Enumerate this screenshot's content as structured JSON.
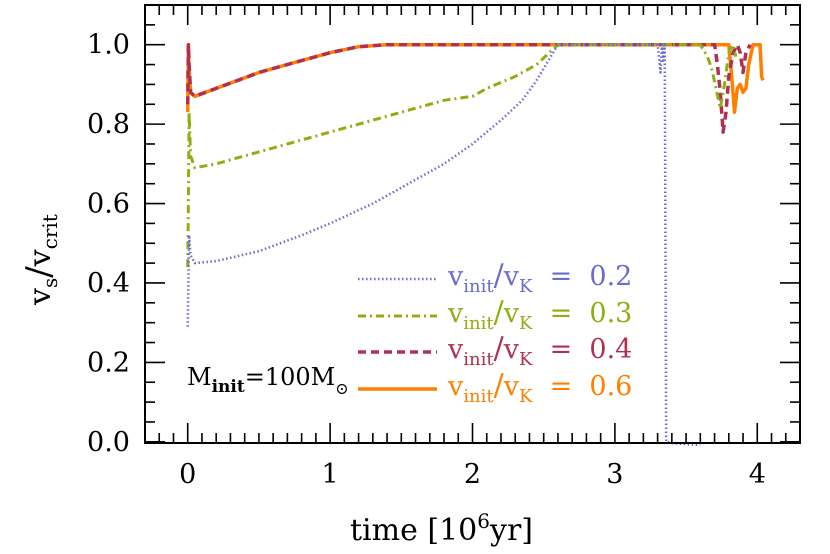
{
  "chart_data": {
    "type": "line",
    "title": "",
    "xlabel": "time [10^6 yr]",
    "xlabel_parts": {
      "main": "time [10",
      "sup": "6",
      "tail": "yr]"
    },
    "ylabel": "v_s/v_crit",
    "ylabel_parts": {
      "v1": "v",
      "sub1": "s",
      "slash": "/",
      "v2": "v",
      "sub2": "crit"
    },
    "xlim": [
      -0.3,
      4.3
    ],
    "ylim": [
      -0.003,
      1.1
    ],
    "xticks": [
      0,
      1,
      2,
      3,
      4
    ],
    "xtick_labels": [
      "0",
      "1",
      "2",
      "3",
      "4"
    ],
    "x_minor_step": 0.1,
    "yticks": [
      0.0,
      0.2,
      0.4,
      0.6,
      0.8,
      1.0
    ],
    "ytick_labels": [
      "0.0",
      "0.2",
      "0.4",
      "0.6",
      "0.8",
      "1.0"
    ],
    "y_minor_step": 0.05,
    "grid": false,
    "legend_position": "lower center-right, inside axes",
    "annotation": {
      "text_main": "M",
      "text_sub": "init",
      "text_eq": "=100M",
      "text_sun": "⊙",
      "full": "M_init=100M_sun"
    },
    "series": [
      {
        "name": "v_init/v_K = 0.2",
        "label_ratio": "0.2",
        "color": "#6b6bd0",
        "style": "dotted",
        "x": [
          0.0,
          0.005,
          0.01,
          0.02,
          0.05,
          0.2,
          0.5,
          0.8,
          1.0,
          1.3,
          1.5,
          1.8,
          2.0,
          2.2,
          2.35,
          2.45,
          2.55,
          2.6,
          2.8,
          3.0,
          3.2,
          3.3,
          3.32,
          3.33,
          3.34,
          3.35,
          3.36,
          3.4,
          3.5,
          3.6
        ],
        "y": [
          0.29,
          0.4,
          0.52,
          0.47,
          0.45,
          0.455,
          0.48,
          0.52,
          0.55,
          0.6,
          0.64,
          0.7,
          0.75,
          0.81,
          0.86,
          0.91,
          0.97,
          1.0,
          1.0,
          1.0,
          1.0,
          1.0,
          0.93,
          1.0,
          0.96,
          1.0,
          0.0,
          -0.003,
          -0.006,
          -0.008
        ]
      },
      {
        "name": "v_init/v_K = 0.3",
        "label_ratio": "0.3",
        "color": "#8fae14",
        "style": "dashdot",
        "x": [
          0.0,
          0.005,
          0.01,
          0.02,
          0.05,
          0.2,
          0.5,
          0.8,
          1.0,
          1.3,
          1.5,
          1.8,
          2.0,
          2.1,
          2.3,
          2.45,
          2.6,
          2.8,
          3.0,
          3.3,
          3.6,
          3.65,
          3.68,
          3.71,
          3.74,
          3.77,
          3.8,
          3.83,
          3.85
        ],
        "y": [
          0.44,
          0.6,
          0.83,
          0.72,
          0.69,
          0.7,
          0.73,
          0.76,
          0.78,
          0.81,
          0.83,
          0.86,
          0.87,
          0.89,
          0.92,
          0.95,
          1.0,
          1.0,
          1.0,
          1.0,
          1.0,
          0.97,
          0.94,
          0.89,
          0.84,
          0.9,
          0.98,
          1.0,
          0.97
        ]
      },
      {
        "name": "v_init/v_K = 0.4",
        "label_ratio": "0.4",
        "color": "#b03050",
        "style": "dashed",
        "x": [
          0.0,
          0.005,
          0.01,
          0.02,
          0.05,
          0.2,
          0.5,
          0.8,
          1.0,
          1.2,
          1.4,
          1.6,
          2.0,
          2.5,
          3.0,
          3.5,
          3.7,
          3.72,
          3.74,
          3.76,
          3.78,
          3.8,
          3.83,
          3.86,
          3.88,
          3.9,
          3.92,
          3.95
        ],
        "y": [
          0.85,
          1.0,
          0.95,
          0.88,
          0.87,
          0.89,
          0.93,
          0.96,
          0.98,
          0.995,
          1.0,
          1.0,
          1.0,
          1.0,
          1.0,
          1.0,
          1.0,
          0.95,
          0.88,
          0.78,
          0.83,
          0.92,
          0.98,
          1.0,
          0.98,
          0.93,
          0.98,
          1.0
        ]
      },
      {
        "name": "v_init/v_K = 0.6",
        "label_ratio": "0.6",
        "color": "#ff8000",
        "style": "solid",
        "x": [
          0.0,
          0.005,
          0.01,
          0.02,
          0.05,
          0.2,
          0.5,
          0.8,
          1.0,
          1.2,
          1.4,
          1.6,
          2.0,
          2.5,
          3.0,
          3.5,
          3.8,
          3.82,
          3.84,
          3.86,
          3.88,
          3.9,
          3.92,
          3.94,
          3.97,
          4.0,
          4.02,
          4.03,
          4.04
        ],
        "y": [
          0.83,
          1.0,
          0.94,
          0.88,
          0.87,
          0.89,
          0.93,
          0.96,
          0.98,
          0.995,
          1.0,
          1.0,
          1.0,
          1.0,
          1.0,
          1.0,
          1.0,
          0.92,
          0.83,
          0.89,
          0.9,
          0.88,
          0.89,
          0.95,
          1.0,
          1.0,
          1.0,
          0.92,
          0.91
        ]
      }
    ]
  }
}
